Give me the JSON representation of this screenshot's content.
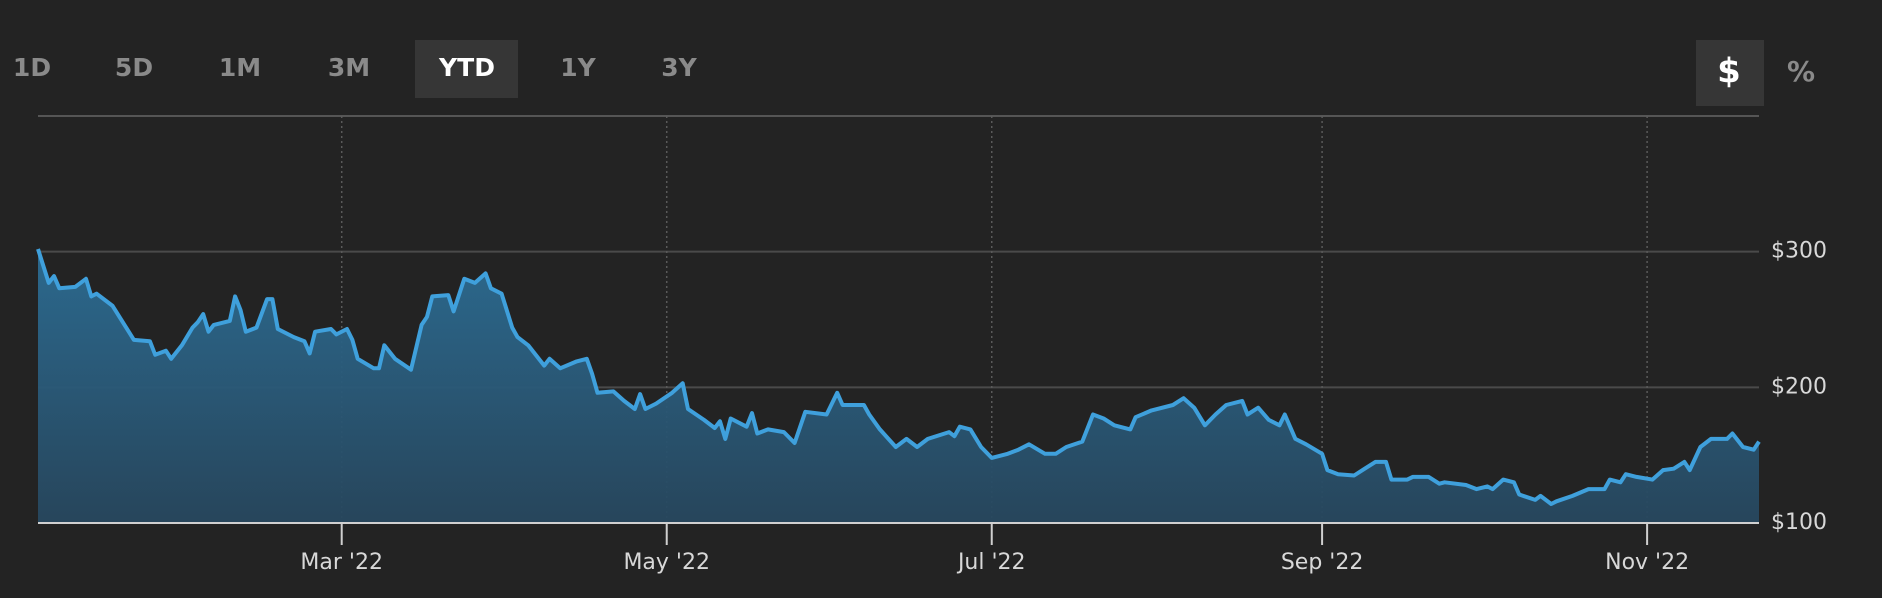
{
  "ui": {
    "ranges": [
      "1D",
      "5D",
      "1M",
      "3M",
      "YTD",
      "1Y",
      "3Y"
    ],
    "active_range": 4,
    "units": [
      "$",
      "%"
    ],
    "active_unit": 0
  },
  "chart_data": {
    "type": "area",
    "color": "#3fa0dc",
    "fill_color": "#2c6d94",
    "x": [
      3,
      5,
      6,
      7,
      10,
      12,
      13,
      14,
      17,
      21,
      24,
      25,
      27,
      28,
      30,
      32,
      33,
      34,
      35,
      36,
      39,
      40,
      41,
      42,
      44,
      46,
      47,
      48,
      51,
      53,
      54,
      55,
      58,
      59,
      61,
      62,
      63,
      66,
      67,
      68,
      70,
      73,
      75,
      76,
      77,
      80,
      81,
      83,
      85,
      87,
      88,
      90,
      92,
      93,
      95,
      98,
      99,
      101,
      104,
      106,
      107,
      108,
      111,
      113,
      115,
      116,
      117,
      119,
      122,
      124,
      125,
      128,
      130,
      131,
      132,
      133,
      136,
      137,
      138,
      140,
      143,
      145,
      147,
      151,
      153,
      154,
      158,
      159,
      161,
      164,
      166,
      168,
      170,
      174,
      175,
      176,
      178,
      180,
      182,
      185,
      187,
      189,
      192,
      194,
      196,
      199,
      201,
      203,
      205,
      208,
      209,
      212,
      216,
      218,
      220,
      222,
      224,
      226,
      229,
      230,
      232,
      234,
      236,
      237,
      239,
      241,
      244,
      245,
      247,
      250,
      252,
      254,
      256,
      257,
      260,
      261,
      264,
      266,
      267,
      271,
      273,
      275,
      276,
      278,
      280,
      281,
      284,
      285,
      287,
      288,
      291,
      294,
      297,
      298,
      300,
      301,
      303,
      306,
      308,
      310,
      312,
      313,
      315,
      317,
      320,
      321,
      323,
      325,
      326
    ],
    "values": [
      302,
      277,
      282,
      273,
      274,
      280,
      267,
      269,
      260,
      235,
      234,
      224,
      227,
      221,
      231,
      244,
      248,
      254,
      241,
      246,
      249,
      267,
      257,
      241,
      244,
      265,
      265,
      243,
      237,
      234,
      225,
      241,
      243,
      239,
      243,
      235,
      221,
      214,
      214,
      231,
      221,
      213,
      246,
      252,
      267,
      268,
      256,
      280,
      277,
      284,
      273,
      269,
      244,
      237,
      231,
      216,
      221,
      214,
      219,
      221,
      210,
      196,
      197,
      190,
      184,
      195,
      184,
      188,
      196,
      203,
      184,
      176,
      170,
      175,
      162,
      177,
      171,
      181,
      166,
      169,
      167,
      159,
      182,
      180,
      196,
      187,
      187,
      180,
      169,
      156,
      162,
      156,
      162,
      167,
      164,
      171,
      169,
      156,
      148,
      151,
      154,
      158,
      151,
      151,
      156,
      160,
      180,
      177,
      172,
      169,
      178,
      183,
      187,
      192,
      185,
      172,
      180,
      187,
      190,
      180,
      185,
      176,
      172,
      180,
      162,
      158,
      151,
      139,
      136,
      135,
      140,
      145,
      145,
      132,
      132,
      134,
      134,
      129,
      130,
      128,
      125,
      127,
      125,
      132,
      130,
      121,
      117,
      120,
      114,
      116,
      120,
      125,
      125,
      132,
      130,
      136,
      134,
      132,
      139,
      140,
      145,
      139,
      156,
      162,
      162,
      166,
      156,
      154,
      160
    ],
    "xlim": [
      3,
      326
    ],
    "xticks": [
      {
        "value": 60,
        "label": "Mar '22"
      },
      {
        "value": 121,
        "label": "May '22"
      },
      {
        "value": 182,
        "label": "Jul '22"
      },
      {
        "value": 244,
        "label": "Sep '22"
      },
      {
        "value": 305,
        "label": "Nov '22"
      }
    ],
    "ylim": [
      100,
      400
    ],
    "yticks": [
      {
        "value": 100,
        "label": "$100"
      },
      {
        "value": 200,
        "label": "$200"
      },
      {
        "value": 300,
        "label": "$300"
      }
    ],
    "grid": true
  }
}
